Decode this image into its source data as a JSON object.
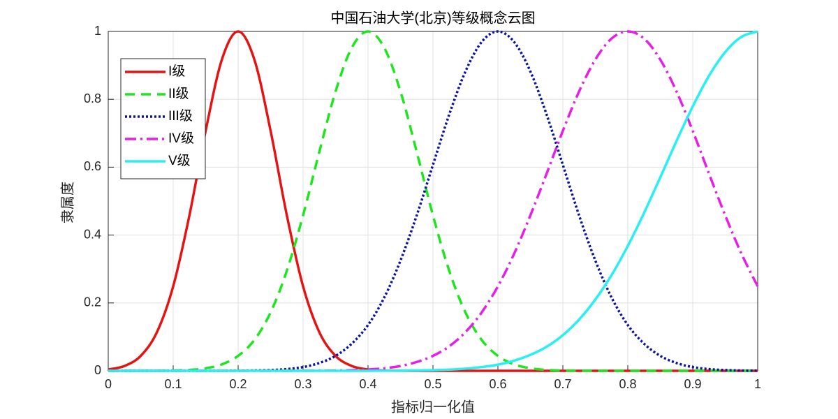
{
  "chart_data": {
    "type": "line",
    "title": "中国石油大学(北京)等级概念云图",
    "x_label": "指标归一化值",
    "y_label": "隶属度",
    "x": [
      0,
      0.025,
      0.05,
      0.075,
      0.1,
      0.125,
      0.15,
      0.175,
      0.2,
      0.225,
      0.25,
      0.275,
      0.3,
      0.325,
      0.35,
      0.375,
      0.4,
      0.425,
      0.45,
      0.475,
      0.5,
      0.525,
      0.55,
      0.575,
      0.6,
      0.625,
      0.65,
      0.675,
      0.7,
      0.725,
      0.75,
      0.775,
      0.8,
      0.825,
      0.85,
      0.875,
      0.9,
      0.925,
      0.95,
      0.975,
      1
    ],
    "series": [
      {
        "name": "I级",
        "color": "#e41414",
        "dash": "solid",
        "values": [
          0.0039,
          0.0142,
          0.044,
          0.114,
          0.249,
          0.458,
          0.707,
          0.917,
          1,
          0.917,
          0.707,
          0.458,
          0.249,
          0.114,
          0.044,
          0.0142,
          0.0039,
          0.0009,
          0.0002,
          0,
          0,
          0,
          0,
          0,
          0,
          0,
          0,
          0,
          0,
          0,
          0,
          0,
          0,
          0,
          0,
          0,
          0,
          0,
          0,
          0,
          0
        ]
      },
      {
        "name": "II级",
        "color": "#1ee61e",
        "dash": "dashed",
        "values": [
          0,
          0,
          0.0001,
          0.0003,
          0.0009,
          0.0027,
          0.0076,
          0.019,
          0.044,
          0.091,
          0.172,
          0.295,
          0.458,
          0.645,
          0.823,
          0.952,
          1,
          0.952,
          0.823,
          0.645,
          0.458,
          0.295,
          0.172,
          0.091,
          0.044,
          0.019,
          0.0076,
          0.0027,
          0.0009,
          0.0003,
          0.0001,
          0,
          0,
          0,
          0,
          0,
          0,
          0,
          0,
          0,
          0
        ]
      },
      {
        "name": "III级",
        "color": "#0a14a0",
        "dash": "dotted",
        "values": [
          0,
          0,
          0,
          0,
          0,
          0,
          0,
          0.0001,
          0.0003,
          0.0009,
          0.0022,
          0.0051,
          0.011,
          0.023,
          0.044,
          0.08,
          0.135,
          0.216,
          0.325,
          0.458,
          0.607,
          0.755,
          0.882,
          0.969,
          1,
          0.969,
          0.882,
          0.755,
          0.607,
          0.458,
          0.325,
          0.216,
          0.135,
          0.08,
          0.044,
          0.023,
          0.011,
          0.0051,
          0.0022,
          0.0009,
          0.0003
        ]
      },
      {
        "name": "IV级",
        "color": "#e61ee6",
        "dash": "dashdot",
        "values": [
          0,
          0,
          0,
          0,
          0,
          0,
          0,
          0,
          0,
          0,
          0,
          0.0001,
          0.0002,
          0.0004,
          0.0009,
          0.0019,
          0.0039,
          0.0076,
          0.0142,
          0.026,
          0.044,
          0.072,
          0.114,
          0.172,
          0.249,
          0.345,
          0.458,
          0.581,
          0.707,
          0.823,
          0.917,
          0.979,
          1,
          0.979,
          0.917,
          0.823,
          0.707,
          0.581,
          0.458,
          0.345,
          0.249
        ]
      },
      {
        "name": "V级",
        "color": "#28f0f0",
        "dash": "solid",
        "values": [
          0,
          0,
          0,
          0,
          0,
          0,
          0,
          0,
          0,
          0,
          0,
          0,
          0,
          0,
          0,
          0.0001,
          0.0001,
          0.0003,
          0.0005,
          0.001,
          0.0019,
          0.0036,
          0.0063,
          0.011,
          0.018,
          0.03,
          0.047,
          0.071,
          0.105,
          0.151,
          0.21,
          0.282,
          0.368,
          0.465,
          0.57,
          0.677,
          0.779,
          0.869,
          0.939,
          0.984,
          1
        ]
      }
    ],
    "xlim": [
      0,
      1
    ],
    "ylim": [
      0,
      1
    ],
    "xticks": [
      0,
      0.1,
      0.2,
      0.3,
      0.4,
      0.5,
      0.6,
      0.7,
      0.8,
      0.9,
      1
    ],
    "yticks": [
      0,
      0.2,
      0.4,
      0.6,
      0.8,
      1
    ],
    "grid": true,
    "legend": "upper left"
  }
}
